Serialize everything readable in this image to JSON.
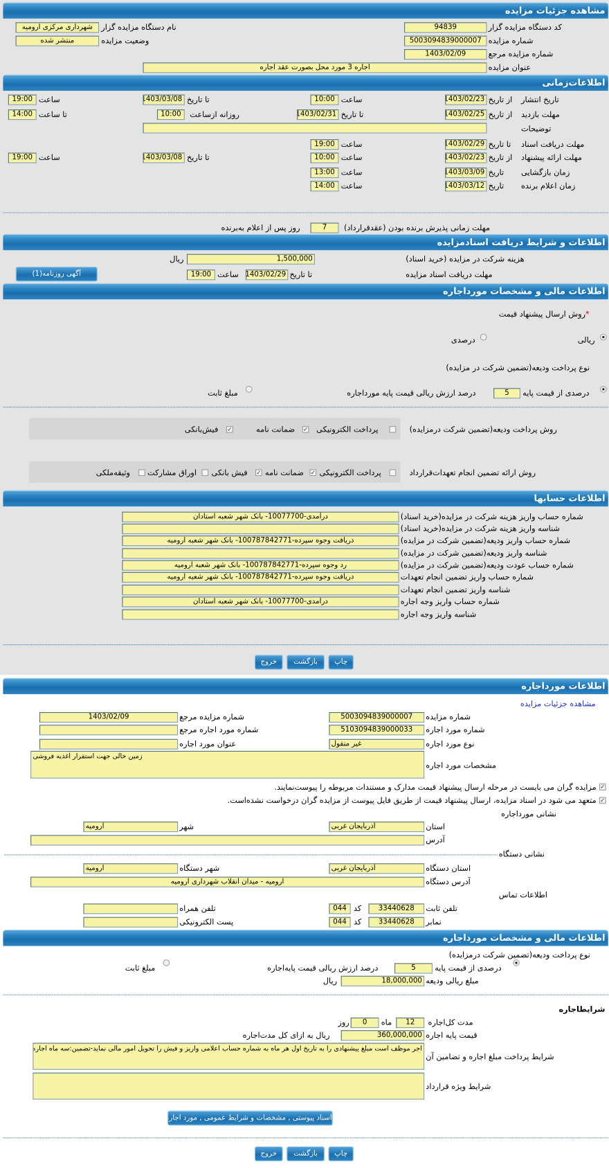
{
  "colors": {
    "header": "#1f74b3",
    "input_bg": "#f8f4a6",
    "page_bg": "#e4e4e4",
    "link": "#1f2fc8"
  },
  "s1": {
    "title": "مشاهده جزئیات مزایده",
    "device_code": {
      "label": "کد دستگاه مزایده گزار",
      "value": "94839"
    },
    "device_name": {
      "label": "نام دستگاه مزایده گزار",
      "value": "شهرداری مرکزی ارومیه"
    },
    "auction_number": {
      "label": "شماره مزایده",
      "value": "5003094839000007"
    },
    "status": {
      "label": "وضعیت مزایده",
      "value": "منتشر شده"
    },
    "ref_number": {
      "label": "شماره مزایده مرجع",
      "value": "1403/02/09"
    },
    "auction_title": {
      "label": "عنوان مزایده",
      "value": "اجاره 3 مورد محل بصورت عقد اجاره"
    }
  },
  "s2": {
    "title": "اطلاعات‌زمانی",
    "publish": {
      "label": "تاریخ انتشار",
      "from_label": "از تاریخ",
      "from_date": "1403/02/23",
      "time_label": "ساعت",
      "from_time": "10:00",
      "to_label": "تا تاریخ",
      "to_date": "1403/03/08",
      "time2_label": "ساعت",
      "to_time": "19:00"
    },
    "visit": {
      "label": "مهلت بازدید",
      "from_label": "از تاریخ",
      "from_date": "1403/02/25",
      "to_label": "تا تاریخ",
      "to_date": "1403/02/31",
      "daily_label": "روزانه ازساعت",
      "daily_from": "10:00",
      "to_time_label": "تا ساعت",
      "to_time": "14:00"
    },
    "description": {
      "label": "توضیحات",
      "value": ""
    },
    "doc_receive": {
      "label": "مهلت دریافت اسناد",
      "to_label": "تا تاریخ",
      "date": "1403/02/29",
      "time_label": "ساعت",
      "time": "19:00"
    },
    "offer": {
      "label": "مهلت ارائه پیشنهاد",
      "from_label": "از تاریخ",
      "from_date": "1403/02/23",
      "time_label": "ساعت",
      "from_time": "10:00",
      "to_label": "تا تاریخ",
      "to_date": "1403/03/08",
      "time2_label": "ساعت",
      "to_time": "19:00"
    },
    "opening": {
      "label": "زمان بازگشایی",
      "date_label": "تاریخ",
      "date": "1403/03/09",
      "time_label": "ساعت",
      "time": "13:00"
    },
    "winner": {
      "label": "زمان اعلام برنده",
      "date_label": "تاریخ",
      "date": "1403/03/12",
      "time_label": "ساعت",
      "time": "14:00"
    },
    "acceptance": {
      "label": "مهلت زمانی پذیرش برنده بودن (عقدقرارداد)",
      "days": "7",
      "suffix": "روز پس از اعلام به‌برنده"
    }
  },
  "s3": {
    "title": "اطلاعات و شرایط دریافت اسنادمزایده",
    "fee": {
      "label": "هزینه شرکت در مزایده (خرید اسناد)",
      "value": "1,500,000",
      "unit": "ریال"
    },
    "deadline": {
      "label": "مهلت دریافت اسناد مزایده",
      "to_label": "تا تاریخ",
      "date": "1403/02/29",
      "time_label": "ساعت",
      "time": "19:00"
    },
    "newspaper_button": "آگهی روزنامه(1)"
  },
  "s4": {
    "title": "اطلاعات مالی و مشخصات مورداجاره",
    "price_method": {
      "required_mark": "*",
      "label": "روش ارسال پیشنهاد قیمت",
      "options": [
        {
          "label": "ریالی",
          "selected": true
        },
        {
          "label": "درصدی",
          "selected": false
        }
      ]
    },
    "deposit_type": {
      "label": "نوع پرداخت ودیعه(تضمین شرکت در مزایده)",
      "percent_label": "درصدی از قیمت پایه",
      "percent": "5",
      "percent_suffix": "درصد ارزش ریالی قیمت پایه مورداجاره",
      "percent_selected": true,
      "fixed_label": "مبلغ ثابت",
      "fixed_selected": false
    },
    "deposit_methods": {
      "label": "روش پرداخت ودیعه(تضمین شرکت درمزایده)",
      "options": [
        {
          "label": "پرداخت الکترونیکی",
          "checked": false
        },
        {
          "label": "ضمانت نامه",
          "checked": true
        },
        {
          "label": "فیش‌بانکی",
          "checked": true
        }
      ]
    },
    "guarantee_methods": {
      "label": "روش ارائه تضمین انجام تعهدات‌قرارداد",
      "options": [
        {
          "label": "پرداخت الکترونیکی",
          "checked": false
        },
        {
          "label": "ضمانت نامه",
          "checked": true
        },
        {
          "label": "فیش بانکی",
          "checked": true
        },
        {
          "label": "اوراق مشارکت",
          "checked": false
        },
        {
          "label": "وثیقه‌ملکی",
          "checked": false
        }
      ]
    }
  },
  "s5": {
    "title": "اطلاعات حسابها",
    "rows": [
      {
        "label": "شماره حساب واریز هزینه شرکت در مزایده(خرید اسناد)",
        "value": "درآمدی-10077700- بانک شهر شعبه استادان"
      },
      {
        "label": "شناسه واریز هزینه شرکت در مزایده(خرید اسناد)",
        "value": ""
      },
      {
        "label": "شماره حساب واریز ودیعه(تضمین شرکت در مزایده)",
        "value": "دریافت وجوه سپرده-100787842771- بانک شهر شعبه ارومیه"
      },
      {
        "label": "شناسه واریز ودیعه(تضمین شرکت در مزایده)",
        "value": ""
      },
      {
        "label": "شماره حساب عودت ودیعه(تضمین شرکت در مزایده)",
        "value": "رد وجوه سپرده-100787842771- بانک شهر شعبه ارومیه"
      },
      {
        "label": "شماره حساب واریز تضمین انجام تعهدات",
        "value": "دریافت وجوه سپرده-100787842771- بانک شهر شعبه ارومیه"
      },
      {
        "label": "شناسه واریز تضمین انجام تعهدات",
        "value": ""
      },
      {
        "label": "شماره حساب واریز وجه اجاره",
        "value": "درآمدی-10077700- بانک شهر شعبه استادان"
      },
      {
        "label": "شناسه واریز وجه اجاره",
        "value": ""
      }
    ]
  },
  "buttons": {
    "print": "چاپ",
    "back": "بازگشت",
    "exit": "خروج"
  },
  "s6": {
    "title": "اطلاعات مورداجاره",
    "view_link": "مشاهده جزئیات مزایده",
    "auction_number": {
      "label": "شماره مزایده",
      "value": "5003094839000007"
    },
    "ref_number": {
      "label": "شماره مزایده مرجع",
      "value": "1403/02/09"
    },
    "lease_number": {
      "label": "شماره مورد اجاره",
      "value": "5103094839000033"
    },
    "lease_ref": {
      "label": "شماره مورد اجاره مرجع",
      "value": ""
    },
    "lease_type": {
      "label": "نوع مورد اجاره",
      "value": "غیر منقول"
    },
    "lease_title": {
      "label": "عنوان مورد اجاره",
      "value": ""
    },
    "lease_specs": {
      "label": "مشخصات مورد اجاره",
      "value": "زمین خالی جهت استقرار اغذیه فروشی"
    },
    "check1": {
      "label": "مزایده گران می بایست در مرحله ارسال پیشنهاد قیمت مدارک و مستندات مربوطه را پیوست‌نمایند.",
      "checked": true
    },
    "check2": {
      "label": "متعهد می شود در اسناد مزایده، ارسال پیشنهاد قیمت از طریق فایل پیوست از مزایده گران درخواست نشده‌است.",
      "checked": true
    },
    "lease_address_title": "نشانی مورداجاره",
    "province": {
      "label": "استان",
      "value": "آذربایجان غربی"
    },
    "city": {
      "label": "شهر",
      "value": "ارومیه"
    },
    "address": {
      "label": "آدرس",
      "value": ""
    },
    "device_address_title": "نشانی دستگاه",
    "device_province": {
      "label": "استان دستگاه",
      "value": "آذربایجان غربی"
    },
    "device_city": {
      "label": "شهر دستگاه",
      "value": "ارومیه"
    },
    "device_address": {
      "label": "آدرس دستگاه",
      "value": "ارومیه - میدان انقلاب شهرداری ارومیه"
    },
    "contact_title": "اطلاعات تماس",
    "phone": {
      "label": "تلفن ثابت",
      "value": "33440628",
      "code_label": "کد",
      "code": "044"
    },
    "mobile": {
      "label": "تلفن همراه",
      "value": ""
    },
    "fax": {
      "label": "نمابر",
      "value": "33440628",
      "code_label": "کد",
      "code": "044"
    },
    "email": {
      "label": "پست الکترونیکی",
      "value": ""
    }
  },
  "s7": {
    "title": "اطلاعات مالی و مشخصات مورداجاره",
    "deposit_type": {
      "label": "نوع پرداخت ودیعه(تضمین شرکت درمزایده)",
      "percent_label": "درصدی از قیمت پایه",
      "percent": "5",
      "percent_suffix": "درصد ارزش ریالی قیمت پایه‌اجاره",
      "percent_selected": true,
      "fixed_label": "مبلغ ثابت",
      "fixed_selected": false
    },
    "deposit_amount": {
      "label": "مبلغ ریالی ودیعه",
      "value": "18,000,000",
      "unit": "ریال"
    },
    "terms_title": "شرایطاجاره",
    "duration": {
      "label": "مدت کل‌اجاره",
      "months": "12",
      "months_label": "ماه",
      "days": "0",
      "days_label": "روز"
    },
    "base_price": {
      "label": "قیمت پایه اجاره",
      "value": "360,000,000",
      "suffix": "ریال به ازای کل مدت‌اجاره"
    },
    "payment_terms": {
      "label": "شرایط پرداخت مبلغ اجاره و تضامین آن",
      "value": "اجر موظف است مبلغ پیشنهادی را به تاریخ اول هر ماه به شماره حساب اعلامی واریز و فیش را تحویل امور مالی نماید-تضمین:سه ماه اجاره بها"
    },
    "special_terms": {
      "label": "شرایط ویژه قرارداد",
      "value": ""
    },
    "attachments_button": "اسناد پیوستی , مشخصات و شرایط عمومی , مورد اجاره(+)"
  }
}
